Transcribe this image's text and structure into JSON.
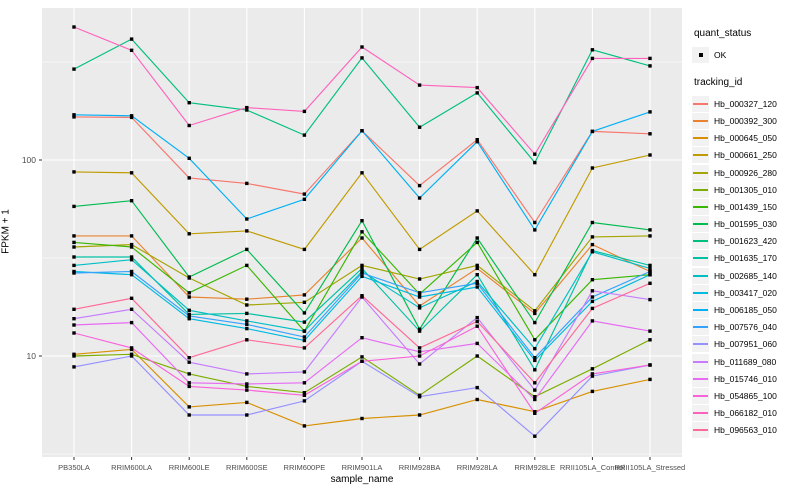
{
  "figure": {
    "x_axis": {
      "label": "sample_name"
    },
    "y_axis": {
      "label": "FPKM + 1",
      "ticks": [
        {
          "label": "100",
          "value": 100
        },
        {
          "label": "10",
          "value": 10
        }
      ]
    },
    "legend": {
      "quant_status_title": "quant_status",
      "quant_status_items": [
        {
          "label": "OK",
          "symbol": "point"
        }
      ],
      "tracking_id_title": "tracking_id"
    },
    "theme": {
      "panel_bg": "#EBEBEB",
      "grid_color": "#FFFFFF",
      "legend_key_bg": "#F2F2F2",
      "axis_text_color": "#4D4D4D",
      "marker_color": "#000000"
    }
  },
  "chart_data": {
    "type": "line",
    "title": "",
    "xlabel": "sample_name",
    "ylabel": "FPKM + 1",
    "y_scale": "log10",
    "ylim": [
      3.05,
      600
    ],
    "y_major_ticks": [
      10,
      100
    ],
    "y_minor_gridlines": [
      3.162,
      31.62,
      316.2
    ],
    "grid": true,
    "legend_position": "right",
    "point_marker": "filled-square",
    "categories": [
      "PB350LA",
      "RRIM600LA",
      "RRIM600LE",
      "RRIM600SE",
      "RRIM600PE",
      "RRIM901LA",
      "RRIM928BA",
      "RRIM928LA",
      "RRIM928LE",
      "RRII105LA_Control",
      "RRII105LA_Stressed"
    ],
    "series": [
      {
        "name": "Hb_000327_120",
        "color": "#F8766D",
        "quant_status": "OK",
        "values": [
          166,
          165,
          81,
          76,
          67,
          141,
          74,
          127,
          48,
          140,
          136
        ]
      },
      {
        "name": "Hb_000392_300",
        "color": "#EA8331",
        "quant_status": "OK",
        "values": [
          41,
          41,
          20,
          19.5,
          20.5,
          40,
          18,
          28,
          16.5,
          37,
          27
        ]
      },
      {
        "name": "Hb_000645_050",
        "color": "#D89000",
        "quant_status": "OK",
        "values": [
          10.2,
          10.8,
          5.5,
          5.8,
          4.4,
          4.8,
          5.0,
          6.0,
          5.2,
          6.6,
          7.6
        ]
      },
      {
        "name": "Hb_000661_250",
        "color": "#C09B00",
        "quant_status": "OK",
        "values": [
          87,
          86,
          42,
          43.5,
          35,
          86,
          35,
          55,
          26,
          91,
          106
        ]
      },
      {
        "name": "Hb_000926_280",
        "color": "#A3A500",
        "quant_status": "OK",
        "values": [
          36,
          37,
          25,
          18.2,
          18.8,
          29,
          24.7,
          29,
          17,
          40.5,
          41
        ]
      },
      {
        "name": "Hb_001305_010",
        "color": "#7CAE00",
        "quant_status": "OK",
        "values": [
          10.0,
          10.2,
          8.1,
          7.0,
          6.5,
          9.9,
          6.3,
          10.0,
          6.2,
          8.6,
          12.1
        ]
      },
      {
        "name": "Hb_001439_150",
        "color": "#39B600",
        "quant_status": "OK",
        "values": [
          38,
          36,
          21,
          29,
          13.4,
          43,
          20.7,
          38,
          12.1,
          24.5,
          26
        ]
      },
      {
        "name": "Hb_001595_030",
        "color": "#00BB4E",
        "quant_status": "OK",
        "values": [
          58,
          62,
          25.3,
          35,
          16.6,
          49,
          13.7,
          40,
          14.8,
          48,
          44
        ]
      },
      {
        "name": "Hb_001623_420",
        "color": "#00BF7D",
        "quant_status": "OK",
        "values": [
          291,
          414,
          196,
          180,
          134,
          332,
          147,
          220,
          97,
          365,
          302
        ]
      },
      {
        "name": "Hb_001635_170",
        "color": "#00C1A3",
        "quant_status": "OK",
        "values": [
          32,
          32,
          16.3,
          16.5,
          14.9,
          28,
          13.4,
          26,
          8.5,
          34.5,
          29
        ]
      },
      {
        "name": "Hb_002685_140",
        "color": "#00BFC4",
        "quant_status": "OK",
        "values": [
          29,
          31,
          17.1,
          15.1,
          13.4,
          27,
          17.6,
          24,
          10.9,
          34,
          28
        ]
      },
      {
        "name": "Hb_003417_020",
        "color": "#00BAE0",
        "quant_status": "OK",
        "values": [
          27,
          26,
          15.5,
          13.8,
          12.0,
          25.5,
          20,
          22.5,
          9.5,
          19,
          26
        ]
      },
      {
        "name": "Hb_006185_050",
        "color": "#00B0F6",
        "quant_status": "OK",
        "values": [
          170,
          168,
          102,
          50,
          63,
          141,
          64,
          124,
          44,
          140,
          176
        ]
      },
      {
        "name": "Hb_007576_040",
        "color": "#35A2FF",
        "quant_status": "OK",
        "values": [
          26.5,
          27,
          16,
          14.5,
          12.5,
          26.5,
          21,
          23.5,
          9.8,
          20,
          27
        ]
      },
      {
        "name": "Hb_007951_060",
        "color": "#9590FF",
        "quant_status": "OK",
        "values": [
          8.8,
          10,
          5.0,
          5.0,
          5.9,
          9.4,
          6.2,
          6.9,
          3.9,
          7.9,
          9.0
        ]
      },
      {
        "name": "Hb_011689_080",
        "color": "#C77CFF",
        "quant_status": "OK",
        "values": [
          15.5,
          17.3,
          9.3,
          8.1,
          8.3,
          20,
          9.1,
          15.7,
          6.7,
          21.5,
          19.4
        ]
      },
      {
        "name": "Hb_015746_010",
        "color": "#E76BF3",
        "quant_status": "OK",
        "values": [
          14.4,
          14.8,
          7.3,
          7.2,
          7.3,
          12.4,
          10.5,
          11.6,
          6.0,
          15.1,
          13.4
        ]
      },
      {
        "name": "Hb_054865_100",
        "color": "#FA62DB",
        "quant_status": "OK",
        "values": [
          13.1,
          11,
          7.0,
          6.7,
          6.3,
          9.4,
          10.0,
          14.2,
          5.1,
          8.1,
          9.0
        ]
      },
      {
        "name": "Hb_066182_010",
        "color": "#FF62BC",
        "quant_status": "OK",
        "values": [
          477,
          363,
          150,
          185,
          177,
          377,
          241,
          234,
          107,
          330,
          330
        ]
      },
      {
        "name": "Hb_096563_010",
        "color": "#FF6A98",
        "quant_status": "OK",
        "values": [
          17.3,
          19.7,
          9.8,
          12.1,
          11.0,
          20.3,
          11.0,
          15.0,
          7.3,
          17.5,
          23.5
        ]
      }
    ]
  }
}
